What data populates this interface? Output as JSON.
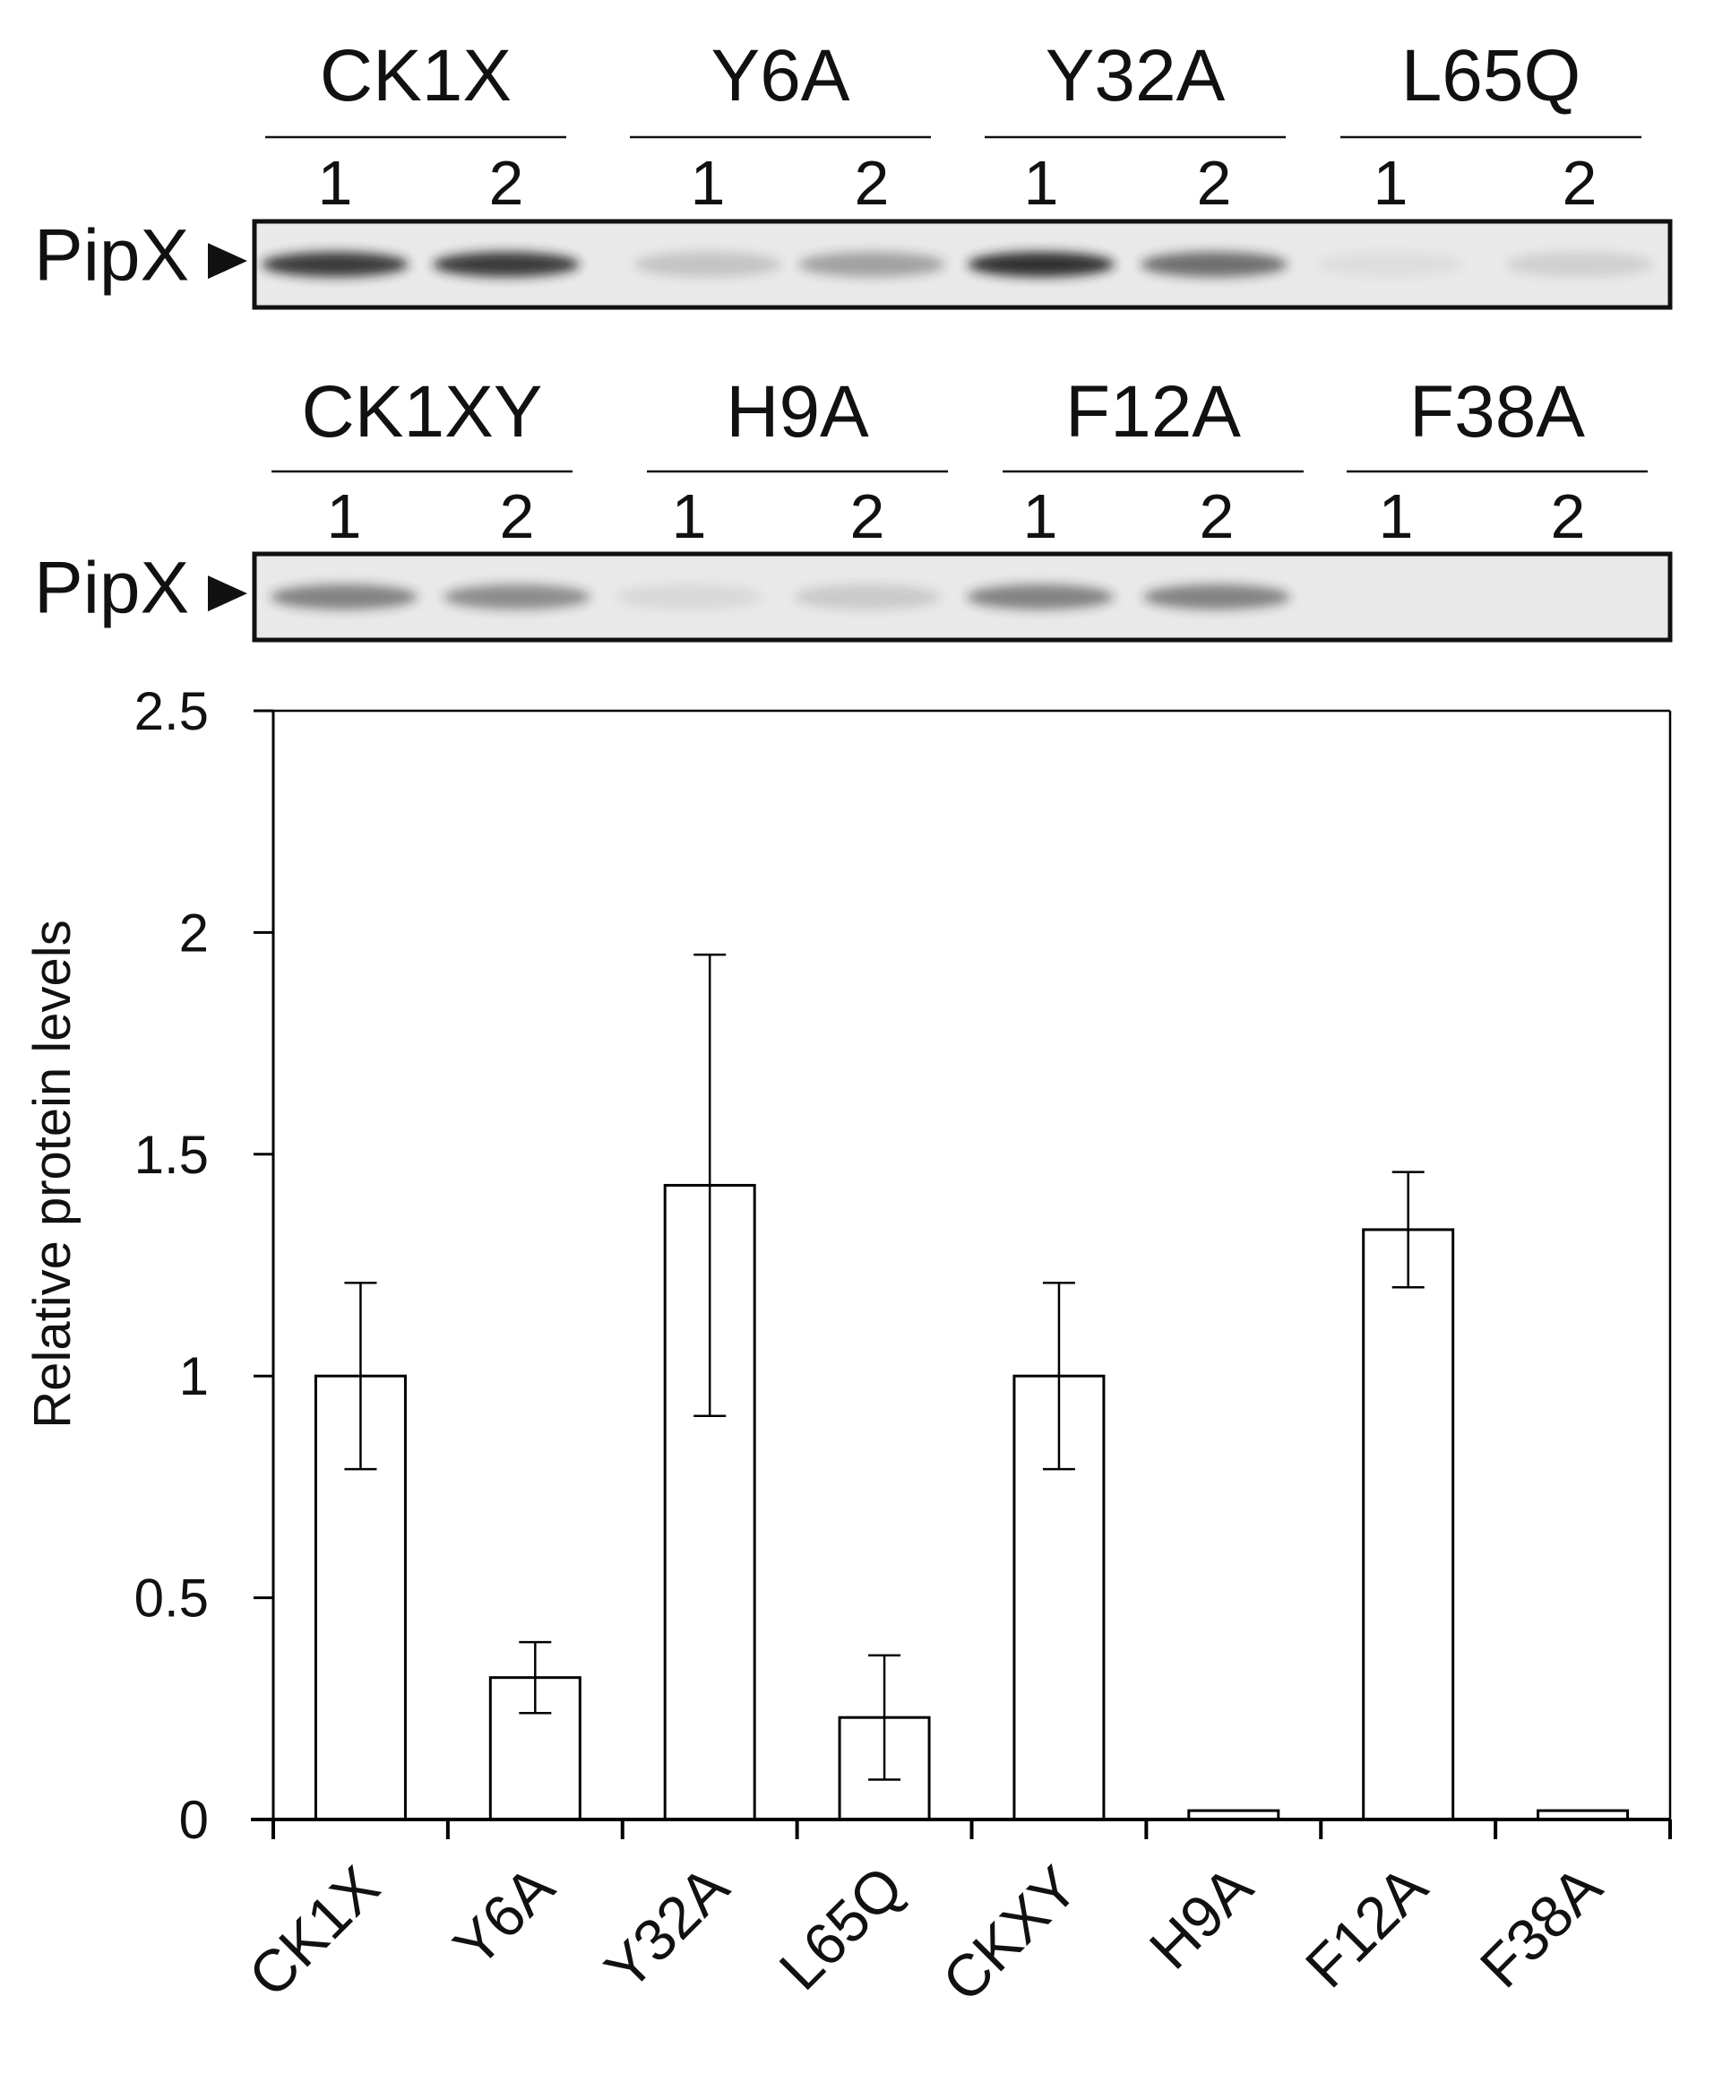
{
  "blots": [
    {
      "groups": [
        "CK1X",
        "Y6A",
        "Y32A",
        "L65Q"
      ],
      "lane_labels": [
        "1",
        "2"
      ],
      "protein_label": "PipX",
      "band_intensity": [
        [
          0.85,
          0.85
        ],
        [
          0.18,
          0.35
        ],
        [
          0.9,
          0.6
        ],
        [
          0.05,
          0.12
        ]
      ]
    },
    {
      "groups": [
        "CK1XY",
        "H9A",
        "F12A",
        "F38A"
      ],
      "lane_labels": [
        "1",
        "2"
      ],
      "protein_label": "PipX",
      "band_intensity": [
        [
          0.5,
          0.45
        ],
        [
          0.08,
          0.15
        ],
        [
          0.5,
          0.5
        ],
        [
          0.0,
          0.0
        ]
      ]
    }
  ],
  "chart_data": {
    "type": "bar",
    "categories": [
      "CK1X",
      "Y6A",
      "Y32A",
      "L65Q",
      "CKXY",
      "H9A",
      "F12A",
      "F38A"
    ],
    "values": [
      1.0,
      0.32,
      1.43,
      0.23,
      1.0,
      0.02,
      1.33,
      0.02
    ],
    "errors": [
      0.21,
      0.08,
      0.52,
      0.14,
      0.21,
      0,
      0.13,
      0
    ],
    "ylabel": "Relative protein levels",
    "xlabel": "",
    "ylim": [
      0,
      2.5
    ],
    "yticks": [
      "0",
      "0.5",
      "1",
      "1.5",
      "2",
      "2.5"
    ],
    "bar_fill": "#ffffff",
    "bar_stroke": "#000000"
  }
}
